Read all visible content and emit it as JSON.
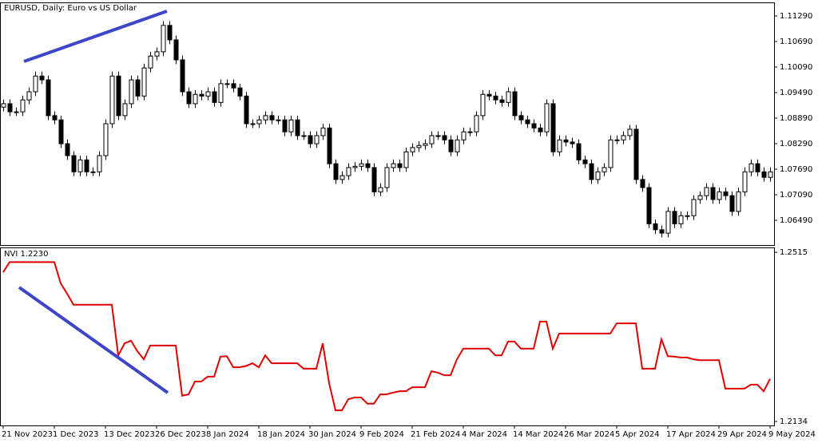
{
  "chart_data": [
    {
      "type": "candlestick",
      "title": "EURUSD, Daily:  Euro vs US Dollar",
      "categories": [
        "21 Nov 2023",
        null,
        null,
        null,
        null,
        null,
        null,
        null,
        "1 Dec 2023",
        null,
        null,
        null,
        null,
        null,
        null,
        null,
        "13 Dec 2023",
        null,
        null,
        null,
        null,
        null,
        null,
        null,
        "26 Dec 2023",
        null,
        null,
        null,
        null,
        null,
        null,
        null,
        "8 Jan 2024",
        null,
        null,
        null,
        null,
        null,
        null,
        null,
        "18 Jan 2024",
        null,
        null,
        null,
        null,
        null,
        null,
        null,
        "30 Jan 2024",
        null,
        null,
        null,
        null,
        null,
        null,
        null,
        "9 Feb 2024",
        null,
        null,
        null,
        null,
        null,
        null,
        null,
        "21 Feb 2024",
        null,
        null,
        null,
        null,
        null,
        null,
        null,
        "4 Mar 2024",
        null,
        null,
        null,
        null,
        null,
        null,
        null,
        "14 Mar 2024",
        null,
        null,
        null,
        null,
        null,
        null,
        null,
        "26 Mar 2024",
        null,
        null,
        null,
        null,
        null,
        null,
        null,
        "5 Apr 2024",
        null,
        null,
        null,
        null,
        null,
        null,
        null,
        "17 Apr 2024",
        null,
        null,
        null,
        null,
        null,
        null,
        null,
        "29 Apr 2024",
        null,
        null,
        null,
        null,
        null,
        null,
        null,
        "9 May 2024"
      ],
      "open": [
        1.0915,
        1.0923,
        1.0904,
        1.0904,
        1.0932,
        1.0951,
        1.0988,
        1.0979,
        1.0895,
        1.0885,
        1.0829,
        1.0801,
        1.0763,
        1.0791,
        1.0763,
        1.0763,
        1.0801,
        1.0876,
        1.0988,
        1.0895,
        1.0923,
        1.0979,
        1.0941,
        1.1007,
        1.1035,
        1.1045,
        1.1107,
        1.1073,
        1.1026,
        1.0951,
        1.0923,
        1.0945,
        1.0941,
        1.0951,
        1.0926,
        1.097,
        1.097,
        1.096,
        1.0941,
        1.0876,
        1.0876,
        1.0885,
        1.0895,
        1.0885,
        1.0885,
        1.0857,
        1.0885,
        1.0848,
        1.0848,
        1.0829,
        1.0848,
        1.0866,
        1.0782,
        1.0745,
        1.0754,
        1.0773,
        1.0776,
        1.0782,
        1.0773,
        1.0716,
        1.0726,
        1.0773,
        1.0782,
        1.0773,
        1.081,
        1.082,
        1.0825,
        1.0829,
        1.0848,
        1.0848,
        1.0838,
        1.081,
        1.0838,
        1.0857,
        1.0857,
        1.0895,
        1.0945,
        1.0941,
        1.0932,
        1.0926,
        1.0951,
        1.0895,
        1.0885,
        1.0876,
        1.0866,
        1.0857,
        1.0923,
        1.081,
        1.0838,
        1.0833,
        1.0829,
        1.0791,
        1.0782,
        1.0745,
        1.0763,
        1.0773,
        1.0838,
        1.0838,
        1.0848,
        1.0863,
        1.0745,
        1.0726,
        1.0641,
        1.0627,
        1.0619,
        1.067,
        1.0641,
        1.066,
        1.066,
        1.0698,
        1.0707,
        1.0726,
        1.0698,
        1.0716,
        1.0707,
        1.067,
        1.0716,
        1.0763,
        1.0782,
        1.0763,
        1.075
      ],
      "high": [
        1.0933,
        1.0933,
        1.0914,
        1.0942,
        1.0961,
        1.0998,
        1.0998,
        1.0989,
        1.0905,
        1.0895,
        1.0839,
        1.0811,
        1.0801,
        1.0801,
        1.0773,
        1.0811,
        1.0886,
        1.0998,
        1.0998,
        1.0933,
        1.0989,
        1.0989,
        1.1017,
        1.1045,
        1.1055,
        1.1117,
        1.1117,
        1.1083,
        1.1036,
        1.0961,
        1.0955,
        1.0955,
        1.0961,
        1.0961,
        1.098,
        1.098,
        1.098,
        1.097,
        1.0951,
        1.0886,
        1.0895,
        1.0905,
        1.0905,
        1.0895,
        1.0895,
        1.0895,
        1.0895,
        1.0858,
        1.0858,
        1.0858,
        1.0876,
        1.0876,
        1.0792,
        1.0764,
        1.0783,
        1.0786,
        1.0792,
        1.0792,
        1.0783,
        1.0736,
        1.0783,
        1.0792,
        1.0792,
        1.082,
        1.083,
        1.0835,
        1.0839,
        1.0858,
        1.0858,
        1.0858,
        1.0848,
        1.0848,
        1.0867,
        1.0867,
        1.0905,
        1.0955,
        1.0955,
        1.0951,
        1.0942,
        1.0961,
        1.0961,
        1.0905,
        1.0895,
        1.0886,
        1.0876,
        1.0933,
        1.0933,
        1.0848,
        1.0848,
        1.0843,
        1.0839,
        1.0801,
        1.0792,
        1.0773,
        1.0783,
        1.0848,
        1.0848,
        1.0858,
        1.0873,
        1.0873,
        1.0755,
        1.0736,
        1.0651,
        1.0637,
        1.068,
        1.068,
        1.067,
        1.067,
        1.0708,
        1.0717,
        1.0736,
        1.0736,
        1.0726,
        1.0726,
        1.0717,
        1.0726,
        1.0773,
        1.0792,
        1.0792,
        1.0773,
        1.0773
      ],
      "low": [
        1.0905,
        1.0894,
        1.0894,
        1.0894,
        1.0922,
        1.0941,
        1.0969,
        1.0885,
        1.0875,
        1.0819,
        1.0791,
        1.0753,
        1.0753,
        1.0753,
        1.0753,
        1.0753,
        1.0791,
        1.0866,
        1.0885,
        1.0885,
        1.0913,
        1.0931,
        1.0931,
        1.0997,
        1.1025,
        1.1035,
        1.1063,
        1.1016,
        1.0941,
        1.0913,
        1.0913,
        1.0931,
        1.0931,
        1.0916,
        1.0916,
        1.096,
        1.095,
        1.0931,
        1.0866,
        1.0866,
        1.0866,
        1.0875,
        1.0875,
        1.0875,
        1.0847,
        1.0847,
        1.0838,
        1.0838,
        1.0819,
        1.0819,
        1.0838,
        1.0772,
        1.0735,
        1.0735,
        1.0744,
        1.0763,
        1.0766,
        1.0763,
        1.0706,
        1.0706,
        1.0716,
        1.0763,
        1.0763,
        1.0763,
        1.08,
        1.081,
        1.0815,
        1.0819,
        1.0838,
        1.0828,
        1.08,
        1.08,
        1.0828,
        1.0847,
        1.0847,
        1.0885,
        1.0931,
        1.0922,
        1.0916,
        1.0916,
        1.0885,
        1.0875,
        1.0866,
        1.0856,
        1.0847,
        1.0847,
        1.08,
        1.08,
        1.0823,
        1.0819,
        1.0781,
        1.0772,
        1.0735,
        1.0735,
        1.0753,
        1.0763,
        1.0828,
        1.0828,
        1.0838,
        1.0735,
        1.0716,
        1.0631,
        1.0617,
        1.0609,
        1.0609,
        1.0631,
        1.0631,
        1.065,
        1.065,
        1.0688,
        1.0697,
        1.0688,
        1.0688,
        1.0697,
        1.066,
        1.066,
        1.0706,
        1.0753,
        1.0753,
        1.074,
        1.074
      ],
      "close": [
        1.0923,
        1.0904,
        1.0904,
        1.0932,
        1.0951,
        1.0988,
        1.0979,
        1.0895,
        1.0885,
        1.0829,
        1.0801,
        1.0763,
        1.0791,
        1.0763,
        1.0763,
        1.0801,
        1.0876,
        1.0988,
        1.0895,
        1.0923,
        1.0979,
        1.0941,
        1.1007,
        1.1035,
        1.1045,
        1.1107,
        1.1073,
        1.1026,
        1.0951,
        1.0923,
        1.0945,
        1.0941,
        1.0951,
        1.0926,
        1.097,
        1.097,
        1.096,
        1.0941,
        1.0876,
        1.0876,
        1.0885,
        1.0895,
        1.0885,
        1.0885,
        1.0857,
        1.0885,
        1.0848,
        1.0848,
        1.0829,
        1.0848,
        1.0866,
        1.0782,
        1.0745,
        1.0754,
        1.0773,
        1.0776,
        1.0782,
        1.0773,
        1.0716,
        1.0726,
        1.0773,
        1.0782,
        1.0773,
        1.081,
        1.082,
        1.0825,
        1.0829,
        1.0848,
        1.0848,
        1.0838,
        1.081,
        1.0838,
        1.0857,
        1.0857,
        1.0895,
        1.0945,
        1.0941,
        1.0932,
        1.0926,
        1.0951,
        1.0895,
        1.0885,
        1.0876,
        1.0866,
        1.0857,
        1.0923,
        1.081,
        1.0838,
        1.0833,
        1.0829,
        1.0791,
        1.0782,
        1.0745,
        1.0763,
        1.0773,
        1.0838,
        1.0838,
        1.0848,
        1.0863,
        1.0745,
        1.0726,
        1.0641,
        1.0627,
        1.0619,
        1.067,
        1.0641,
        1.066,
        1.066,
        1.0698,
        1.0707,
        1.0726,
        1.0698,
        1.0716,
        1.0707,
        1.067,
        1.0716,
        1.0763,
        1.0782,
        1.0763,
        1.075,
        1.0763
      ],
      "color": "#000000",
      "up_color": "#ffffff",
      "down_color": "#000000",
      "ylim": [
        1.0591,
        1.1161
      ],
      "yticks": [
        {
          "value": 1.1129,
          "label": "1.11290"
        },
        {
          "value": 1.1069,
          "label": "1.10690"
        },
        {
          "value": 1.1009,
          "label": "1.10090"
        },
        {
          "value": 1.0949,
          "label": "1.09490"
        },
        {
          "value": 1.0889,
          "label": "1.08890"
        },
        {
          "value": 1.0829,
          "label": "1.08290"
        },
        {
          "value": 1.0769,
          "label": "1.07690"
        },
        {
          "value": 1.0709,
          "label": "1.07090"
        },
        {
          "value": 1.0649,
          "label": "1.06490"
        }
      ]
    },
    {
      "type": "line",
      "title": "NVI 1.2230",
      "color": "#e00000",
      "values": [
        1.247,
        1.2493,
        1.2493,
        1.2493,
        1.2493,
        1.2493,
        1.2493,
        1.2493,
        1.2493,
        1.2445,
        1.2422,
        1.2397,
        1.2397,
        1.2397,
        1.2397,
        1.2397,
        1.2397,
        1.2397,
        1.2283,
        1.231,
        1.2316,
        1.2292,
        1.2274,
        1.2305,
        1.2305,
        1.2305,
        1.2305,
        1.2305,
        1.2192,
        1.2195,
        1.2224,
        1.2224,
        1.2235,
        1.2235,
        1.228,
        1.2281,
        1.2256,
        1.2256,
        1.2259,
        1.2265,
        1.2256,
        1.2283,
        1.2265,
        1.2265,
        1.2265,
        1.2265,
        1.2265,
        1.2253,
        1.2253,
        1.2253,
        1.231,
        1.222,
        1.2159,
        1.2159,
        1.2184,
        1.2188,
        1.2188,
        1.2174,
        1.2174,
        1.2195,
        1.2195,
        1.2199,
        1.2202,
        1.2202,
        1.2211,
        1.2211,
        1.2211,
        1.2247,
        1.2244,
        1.2238,
        1.2238,
        1.2274,
        1.2298,
        1.2298,
        1.2298,
        1.2298,
        1.2298,
        1.2283,
        1.2283,
        1.2314,
        1.2314,
        1.2298,
        1.2298,
        1.2298,
        1.2359,
        1.2359,
        1.2298,
        1.2332,
        1.2332,
        1.2332,
        1.2332,
        1.2332,
        1.2332,
        1.2332,
        1.2332,
        1.2332,
        1.2355,
        1.2355,
        1.2355,
        1.2355,
        1.2253,
        1.2253,
        1.2253,
        1.2319,
        1.2281,
        1.228,
        1.2278,
        1.2278,
        1.2274,
        1.2272,
        1.2272,
        1.2272,
        1.2272,
        1.2208,
        1.2208,
        1.2208,
        1.2208,
        1.2217,
        1.2217,
        1.2202,
        1.223
      ],
      "ylim": [
        1.2125,
        1.2526
      ],
      "yticks": [
        1.2515,
        1.2134
      ]
    }
  ]
}
